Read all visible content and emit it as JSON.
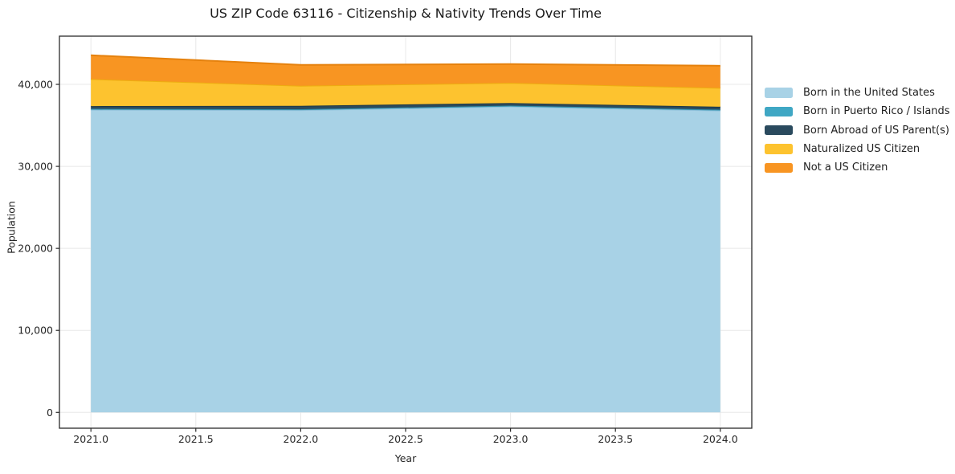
{
  "title": "US ZIP Code 63116 - Citizenship & Nativity Trends Over Time",
  "chart_data": {
    "type": "area",
    "stacked": true,
    "title": "US ZIP Code 63116 - Citizenship & Nativity Trends Over Time",
    "xlabel": "Year",
    "ylabel": "Population",
    "x": [
      2021,
      2022,
      2023,
      2024
    ],
    "series": [
      {
        "name": "Born in the United States",
        "color": "#a8d2e6",
        "edge": "#90c1db",
        "values": [
          36900,
          36850,
          37300,
          36800
        ]
      },
      {
        "name": "Born in Puerto Rico / Islands",
        "color": "#3fa7c4",
        "edge": "#368fa9",
        "values": [
          120,
          110,
          110,
          120
        ]
      },
      {
        "name": "Born Abroad of US Parent(s)",
        "color": "#2a4a5e",
        "edge": "#1f3947",
        "values": [
          330,
          420,
          320,
          350
        ]
      },
      {
        "name": "Naturalized US Citizen",
        "color": "#fdc32f",
        "edge": "#edae10",
        "values": [
          3300,
          2450,
          2450,
          2300
        ]
      },
      {
        "name": "Not a US Citizen",
        "color": "#f89522",
        "edge": "#e5810d",
        "values": [
          2900,
          2550,
          2300,
          2700
        ]
      }
    ],
    "stack_totals": [
      43550,
      42380,
      42480,
      42270
    ],
    "xticks": {
      "values": [
        2021,
        2021.5,
        2022,
        2022.5,
        2023,
        2023.5,
        2024
      ],
      "labels": [
        "2021.0",
        "2021.5",
        "2022.0",
        "2022.5",
        "2023.0",
        "2023.5",
        "2024.0"
      ]
    },
    "yticks": {
      "values": [
        0,
        10000,
        20000,
        30000,
        40000
      ],
      "labels": [
        "0",
        "10,000",
        "20,000",
        "30,000",
        "40,000"
      ]
    },
    "xlim": [
      2020.85,
      2024.15
    ],
    "ylim": [
      -1930,
      45880
    ],
    "grid": true,
    "legend_position": "center-right-outside"
  },
  "colors": {
    "background": "#ffffff",
    "grid": "#e8e8e8",
    "spine": "#2b2b2b",
    "tick_text": "#262626",
    "title_text": "#1a1a1a"
  }
}
